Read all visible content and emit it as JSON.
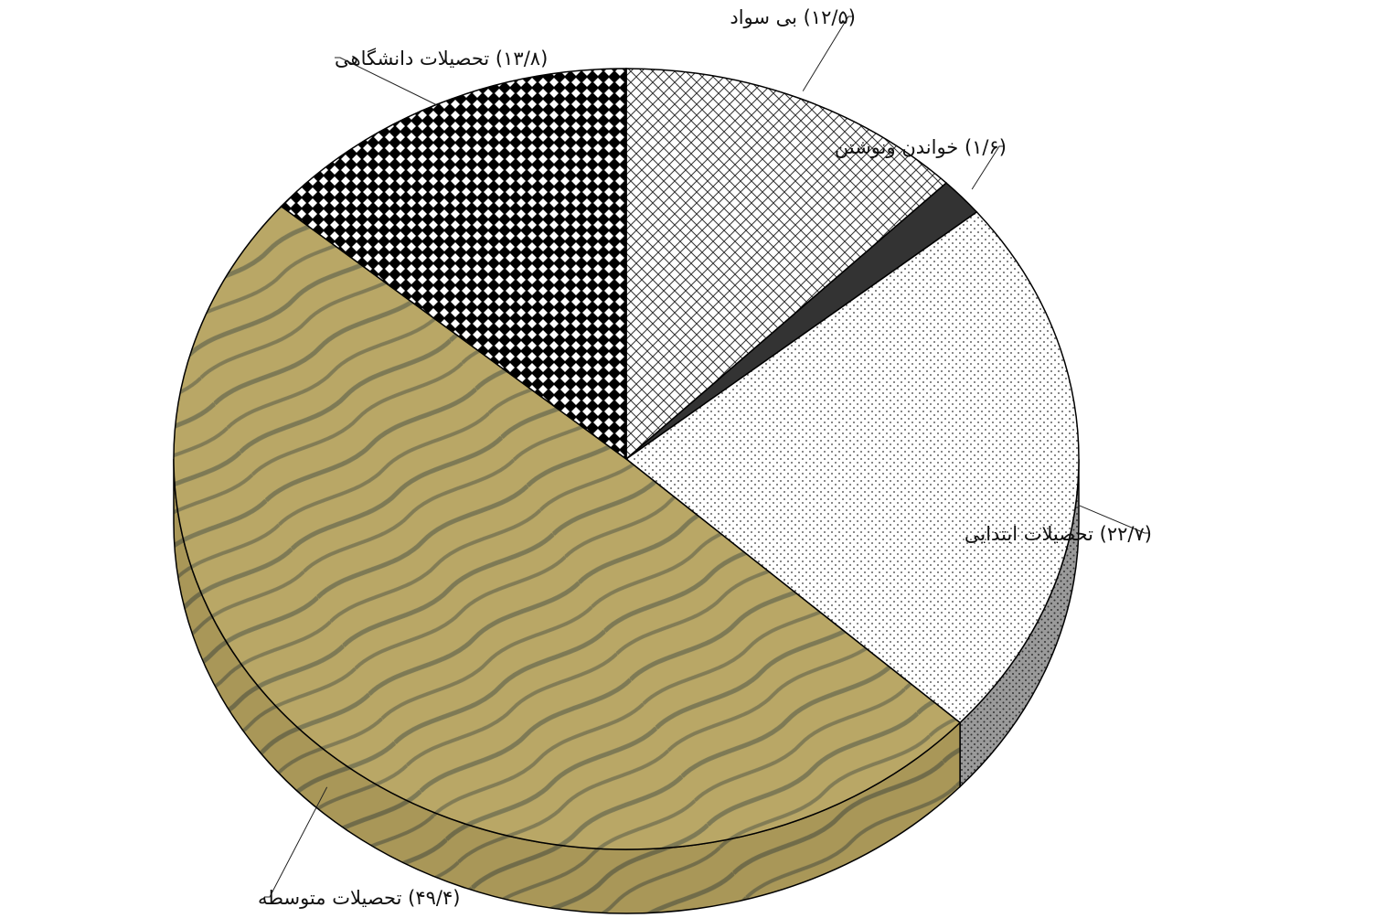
{
  "chart_data": {
    "type": "pie",
    "style": "3d",
    "start": "12 o'clock",
    "direction": "clockwise",
    "slices": [
      {
        "label": "بی سواد",
        "value_text": "(۱۲/۵)",
        "value": 12.5,
        "fill": "hatch-diagonal",
        "color": "#ffffff"
      },
      {
        "label": "خواندن ونوشتن",
        "value_text": "(۱/۶)",
        "value": 1.6,
        "fill": "solid",
        "color": "#333333"
      },
      {
        "label": "تحصیلات ابتدایی",
        "value_text": "(۲۲/۷)",
        "value": 22.7,
        "fill": "dots",
        "color": "#ffffff"
      },
      {
        "label": "تحصیلات متوسطه",
        "value_text": "(۴۹/۴)",
        "value": 49.4,
        "fill": "sand-texture",
        "color": "#b9a766"
      },
      {
        "label": "تحصیلات دانشگاهی",
        "value_text": "(۱۳/۸)",
        "value": 13.8,
        "fill": "checker",
        "color": "#000000"
      }
    ]
  }
}
